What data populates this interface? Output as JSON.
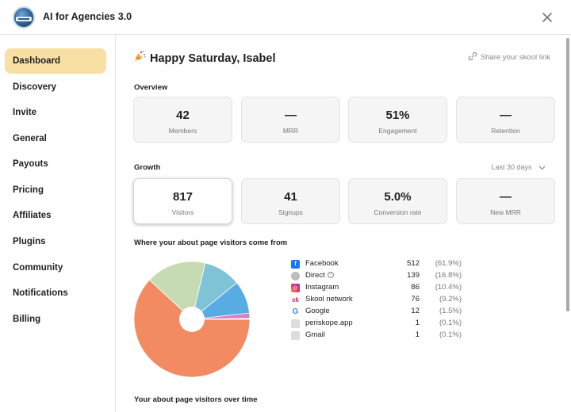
{
  "header": {
    "app_title": "AI for Agencies 3.0"
  },
  "sidebar": {
    "items": [
      {
        "label": "Dashboard",
        "active": true
      },
      {
        "label": "Discovery"
      },
      {
        "label": "Invite"
      },
      {
        "label": "General"
      },
      {
        "label": "Payouts"
      },
      {
        "label": "Pricing"
      },
      {
        "label": "Affiliates"
      },
      {
        "label": "Plugins"
      },
      {
        "label": "Community"
      },
      {
        "label": "Notifications"
      },
      {
        "label": "Billing"
      }
    ]
  },
  "main": {
    "greeting": "Happy Saturday, Isabel",
    "share_link": "Share your skool link",
    "overview": {
      "title": "Overview",
      "cards": [
        {
          "value": "42",
          "label": "Members"
        },
        {
          "value": "—",
          "label": "MRR"
        },
        {
          "value": "51%",
          "label": "Engagement"
        },
        {
          "value": "—",
          "label": "Retention"
        }
      ]
    },
    "growth": {
      "title": "Growth",
      "range": "Last 30 days",
      "cards": [
        {
          "value": "817",
          "label": "Visitors"
        },
        {
          "value": "41",
          "label": "Signups"
        },
        {
          "value": "5.0%",
          "label": "Conversion rate"
        },
        {
          "value": "—",
          "label": "New MRR"
        }
      ]
    },
    "sources": {
      "title": "Where your about page visitors come from",
      "items": [
        {
          "name": "Facebook",
          "count": "512",
          "pct": "(61.9%)",
          "icon": "facebook-icon",
          "color": "#f28b61"
        },
        {
          "name": "Direct",
          "count": "139",
          "pct": "(16.8%)",
          "icon": "globe-icon",
          "color": "#c6dbb4"
        },
        {
          "name": "Instagram",
          "count": "86",
          "pct": "(10.4%)",
          "icon": "instagram-icon",
          "color": "#7ec3d6"
        },
        {
          "name": "Skool network",
          "count": "76",
          "pct": "(9.2%)",
          "icon": "skool-icon",
          "color": "#56ace3"
        },
        {
          "name": "Google",
          "count": "12",
          "pct": "(1.5%)",
          "icon": "google-icon",
          "color": "#d37fc2"
        },
        {
          "name": "periskope.app",
          "count": "1",
          "pct": "(0.1%)",
          "icon": "generic-site-icon",
          "color": "#9aa8e8"
        },
        {
          "name": "Gmail",
          "count": "1",
          "pct": "(0.1%)",
          "icon": "generic-site-icon",
          "color": "#9be1e2"
        }
      ]
    },
    "over_time_title": "Your about page visitors over time"
  },
  "chart_data": {
    "type": "pie",
    "categories": [
      "Facebook",
      "Direct",
      "Instagram",
      "Skool network",
      "Google",
      "periskope.app",
      "Gmail"
    ],
    "values": [
      512,
      139,
      86,
      76,
      12,
      1,
      1
    ],
    "colors": [
      "#f28b61",
      "#c6dbb4",
      "#7ec3d6",
      "#56ace3",
      "#d37fc2",
      "#9aa8e8",
      "#9be1e2"
    ],
    "donut": true
  }
}
